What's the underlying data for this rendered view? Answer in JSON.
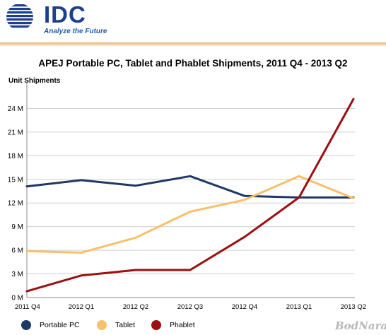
{
  "header": {
    "logo_text": "IDC",
    "tagline": "Analyze the Future"
  },
  "watermark": "BodNara",
  "chart_data": {
    "type": "line",
    "title": "APEJ Portable PC, Tablet and Phablet Shipments, 2011 Q4 - 2013 Q2",
    "xlabel": "",
    "ylabel": "Unit Shipments",
    "categories": [
      "2011 Q4",
      "2012 Q1",
      "2012 Q2",
      "2012 Q3",
      "2012 Q4",
      "2013 Q1",
      "2013 Q2"
    ],
    "y_ticks": [
      0,
      3,
      6,
      9,
      12,
      15,
      18,
      21,
      24
    ],
    "y_tick_labels": [
      "0 M",
      "3 M",
      "6 M",
      "9 M",
      "12 M",
      "15 M",
      "18 M",
      "21 M",
      "24 M"
    ],
    "ylim": [
      0,
      27
    ],
    "grid": true,
    "legend_position": "bottom",
    "series": [
      {
        "name": "Portable PC",
        "color": "#1f3864",
        "values": [
          14.1,
          14.9,
          14.2,
          15.4,
          12.9,
          12.7,
          12.7
        ]
      },
      {
        "name": "Tablet",
        "color": "#f9c06b",
        "values": [
          5.9,
          5.7,
          7.6,
          10.9,
          12.4,
          15.4,
          12.6
        ]
      },
      {
        "name": "Phablet",
        "color": "#9b1010",
        "values": [
          0.8,
          2.8,
          3.5,
          3.5,
          7.7,
          12.7,
          25.2
        ]
      }
    ]
  }
}
